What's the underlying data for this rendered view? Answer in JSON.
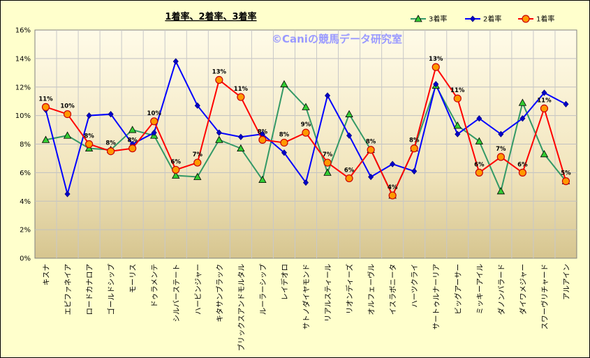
{
  "chart_data": {
    "type": "line",
    "title": "1着率、2着率、3着率",
    "watermark": "©Caniの競馬データ研究室",
    "categories": [
      "キスナ",
      "エピファネイア",
      "ロードカナロア",
      "ゴールドシップ",
      "モーリス",
      "ドゥラメンテ",
      "シルバーステート",
      "ハービンジャー",
      "キタサンブラック",
      "ブリックスアンドモルタル",
      "ルーラーシップ",
      "レイデオロ",
      "サトノダイヤモンド",
      "リアルスティール",
      "リオンディーズ",
      "オルフェーヴル",
      "イスラボニータ",
      "ハーツクライ",
      "サートゥルナーリア",
      "ビッグアーサー",
      "ミッキーアイル",
      "ダノンバラード",
      "ダイワメジャー",
      "スワーヴリチャード",
      "アルアイン"
    ],
    "ylim": [
      0,
      16
    ],
    "yticks": [
      0,
      2,
      4,
      6,
      8,
      10,
      12,
      14,
      16
    ],
    "ytick_labels": [
      "0%",
      "2%",
      "4%",
      "6%",
      "8%",
      "10%",
      "12%",
      "14%",
      "16%"
    ],
    "legend_position": "top-right",
    "grid": true,
    "series": [
      {
        "name": "3着率",
        "color": "#339966",
        "marker": "triangle",
        "marker_color": "#33cc33",
        "values": [
          8.3,
          8.6,
          7.7,
          7.6,
          9.0,
          8.6,
          5.8,
          5.7,
          8.3,
          7.7,
          5.5,
          12.2,
          10.6,
          6.0,
          10.1,
          7.6,
          4.4,
          7.7,
          12.1,
          9.3,
          8.2,
          4.7,
          10.9,
          7.3,
          5.4
        ]
      },
      {
        "name": "2着率",
        "color": "#0000ff",
        "marker": "diamond",
        "marker_color": "#0000cc",
        "values": [
          10.4,
          4.5,
          10.0,
          10.1,
          8.0,
          8.8,
          13.8,
          10.7,
          8.8,
          8.5,
          8.7,
          7.4,
          5.3,
          11.4,
          8.6,
          5.7,
          6.6,
          6.1,
          12.2,
          8.7,
          9.8,
          8.7,
          9.8,
          11.6,
          10.8
        ]
      },
      {
        "name": "1着率",
        "color": "#ff0000",
        "marker": "circle",
        "marker_color": "#ff9900",
        "values": [
          10.6,
          10.1,
          8.0,
          7.5,
          7.7,
          9.6,
          6.2,
          6.7,
          12.5,
          11.3,
          8.3,
          8.1,
          8.8,
          6.7,
          5.6,
          7.6,
          4.4,
          7.7,
          13.4,
          11.2,
          6.0,
          7.1,
          6.0,
          10.5,
          5.4
        ]
      }
    ],
    "data_labels": [
      "11%",
      "10%",
      "8%",
      "8%",
      "8%",
      "10%",
      "6%",
      "7%",
      "13%",
      "11%",
      "8%",
      "8%",
      "9%",
      "7%",
      "6%",
      "8%",
      "4%",
      "8%",
      "13%",
      "11%",
      "6%",
      "7%",
      "6%",
      "11%",
      "5%"
    ]
  }
}
